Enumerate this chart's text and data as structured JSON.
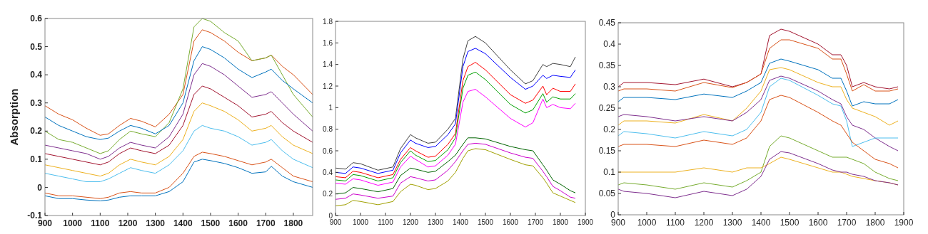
{
  "chart_data": [
    {
      "type": "line",
      "ylabel": "Absorption",
      "x": [
        900,
        950,
        1000,
        1050,
        1100,
        1130,
        1170,
        1210,
        1250,
        1300,
        1350,
        1400,
        1440,
        1470,
        1500,
        1550,
        1600,
        1650,
        1700,
        1720,
        1760,
        1800,
        1870
      ],
      "xlim": [
        900,
        1870
      ],
      "xticks": [
        900,
        1000,
        1100,
        1200,
        1300,
        1400,
        1500,
        1600,
        1700,
        1800
      ],
      "ylim": [
        -0.1,
        0.6
      ],
      "yticks": [
        -0.1,
        0,
        0.1,
        0.2,
        0.3,
        0.4,
        0.5,
        0.6
      ],
      "grid": false,
      "series": [
        {
          "color": "#d95319",
          "values": [
            0.29,
            0.26,
            0.24,
            0.21,
            0.185,
            0.19,
            0.22,
            0.245,
            0.235,
            0.215,
            0.26,
            0.33,
            0.52,
            0.56,
            0.55,
            0.52,
            0.48,
            0.45,
            0.46,
            0.47,
            0.43,
            0.4,
            0.33
          ]
        },
        {
          "color": "#77ac30",
          "values": [
            0.2,
            0.17,
            0.16,
            0.14,
            0.12,
            0.13,
            0.17,
            0.2,
            0.19,
            0.18,
            0.23,
            0.35,
            0.57,
            0.6,
            0.59,
            0.55,
            0.52,
            0.45,
            0.46,
            0.47,
            0.4,
            0.33,
            0.25
          ]
        },
        {
          "color": "#0072bd",
          "values": [
            0.25,
            0.22,
            0.2,
            0.18,
            0.17,
            0.175,
            0.2,
            0.22,
            0.21,
            0.19,
            0.22,
            0.3,
            0.45,
            0.5,
            0.49,
            0.46,
            0.42,
            0.39,
            0.41,
            0.42,
            0.38,
            0.35,
            0.3
          ]
        },
        {
          "color": "#7e2f8e",
          "values": [
            0.15,
            0.14,
            0.13,
            0.12,
            0.1,
            0.11,
            0.14,
            0.16,
            0.15,
            0.14,
            0.18,
            0.26,
            0.4,
            0.44,
            0.43,
            0.4,
            0.36,
            0.32,
            0.33,
            0.34,
            0.3,
            0.26,
            0.2
          ]
        },
        {
          "color": "#a2142f",
          "values": [
            0.12,
            0.11,
            0.1,
            0.09,
            0.08,
            0.09,
            0.12,
            0.14,
            0.13,
            0.12,
            0.15,
            0.22,
            0.33,
            0.36,
            0.35,
            0.32,
            0.29,
            0.25,
            0.26,
            0.27,
            0.23,
            0.2,
            0.16
          ]
        },
        {
          "color": "#edb120",
          "values": [
            0.08,
            0.07,
            0.06,
            0.05,
            0.04,
            0.05,
            0.08,
            0.1,
            0.09,
            0.08,
            0.11,
            0.17,
            0.27,
            0.3,
            0.29,
            0.27,
            0.24,
            0.2,
            0.21,
            0.22,
            0.18,
            0.15,
            0.12
          ]
        },
        {
          "color": "#4dbeee",
          "values": [
            0.05,
            0.04,
            0.03,
            0.02,
            0.02,
            0.03,
            0.05,
            0.07,
            0.06,
            0.05,
            0.08,
            0.13,
            0.2,
            0.22,
            0.21,
            0.2,
            0.18,
            0.15,
            0.16,
            0.17,
            0.13,
            0.1,
            0.07
          ]
        },
        {
          "color": "#d95319",
          "values": [
            -0.02,
            -0.03,
            -0.03,
            -0.035,
            -0.04,
            -0.035,
            -0.02,
            -0.015,
            -0.02,
            -0.02,
            0.0,
            0.05,
            0.11,
            0.125,
            0.12,
            0.11,
            0.095,
            0.08,
            0.09,
            0.1,
            0.07,
            0.04,
            0.02
          ]
        },
        {
          "color": "#0072bd",
          "values": [
            -0.03,
            -0.04,
            -0.04,
            -0.045,
            -0.048,
            -0.045,
            -0.035,
            -0.03,
            -0.03,
            -0.03,
            -0.015,
            0.02,
            0.09,
            0.1,
            0.095,
            0.085,
            0.07,
            0.05,
            0.055,
            0.075,
            0.04,
            0.02,
            0.0
          ]
        }
      ]
    },
    {
      "type": "line",
      "x": [
        900,
        940,
        970,
        1000,
        1070,
        1130,
        1160,
        1200,
        1220,
        1270,
        1300,
        1350,
        1380,
        1410,
        1430,
        1460,
        1500,
        1600,
        1660,
        1690,
        1730,
        1745,
        1770,
        1800,
        1840,
        1860
      ],
      "xlim": [
        900,
        1900
      ],
      "xticks": [
        900,
        1000,
        1100,
        1200,
        1300,
        1400,
        1500,
        1600,
        1700,
        1800,
        1900
      ],
      "ylim": [
        0,
        1.8
      ],
      "yticks": [
        0,
        0.2,
        0.4,
        0.6,
        0.8,
        1,
        1.2,
        1.4,
        1.6,
        1.8
      ],
      "grid": false,
      "series": [
        {
          "color": "#404040",
          "values": [
            0.44,
            0.43,
            0.49,
            0.48,
            0.42,
            0.45,
            0.62,
            0.75,
            0.72,
            0.67,
            0.68,
            0.8,
            0.9,
            1.45,
            1.62,
            1.66,
            1.6,
            1.35,
            1.22,
            1.25,
            1.4,
            1.38,
            1.41,
            1.4,
            1.38,
            1.47
          ]
        },
        {
          "color": "#0000ff",
          "values": [
            0.4,
            0.39,
            0.45,
            0.44,
            0.39,
            0.42,
            0.58,
            0.7,
            0.67,
            0.63,
            0.64,
            0.75,
            0.85,
            1.38,
            1.52,
            1.55,
            1.5,
            1.28,
            1.17,
            1.2,
            1.3,
            1.27,
            1.3,
            1.29,
            1.28,
            1.35
          ]
        },
        {
          "color": "#ff0000",
          "values": [
            0.36,
            0.35,
            0.41,
            0.4,
            0.35,
            0.38,
            0.52,
            0.63,
            0.6,
            0.54,
            0.55,
            0.66,
            0.76,
            1.25,
            1.38,
            1.42,
            1.35,
            1.12,
            1.04,
            1.07,
            1.2,
            1.12,
            1.18,
            1.15,
            1.15,
            1.22
          ]
        },
        {
          "color": "#00a000",
          "values": [
            0.33,
            0.32,
            0.38,
            0.37,
            0.32,
            0.35,
            0.49,
            0.6,
            0.56,
            0.5,
            0.51,
            0.61,
            0.72,
            1.18,
            1.3,
            1.33,
            1.26,
            1.03,
            0.95,
            0.98,
            1.13,
            1.05,
            1.1,
            1.08,
            1.08,
            1.13
          ]
        },
        {
          "color": "#ff00ff",
          "values": [
            0.3,
            0.29,
            0.34,
            0.33,
            0.28,
            0.31,
            0.45,
            0.55,
            0.52,
            0.45,
            0.46,
            0.56,
            0.66,
            1.05,
            1.15,
            1.17,
            1.1,
            0.9,
            0.82,
            0.86,
            1.08,
            1.0,
            1.03,
            1.0,
            0.99,
            1.04
          ]
        },
        {
          "color": "#006400",
          "values": [
            0.2,
            0.21,
            0.26,
            0.25,
            0.22,
            0.25,
            0.37,
            0.44,
            0.43,
            0.4,
            0.41,
            0.5,
            0.56,
            0.66,
            0.72,
            0.72,
            0.71,
            0.64,
            0.61,
            0.6,
            0.47,
            0.42,
            0.33,
            0.29,
            0.23,
            0.21
          ]
        },
        {
          "color": "#cc00cc",
          "values": [
            0.15,
            0.16,
            0.2,
            0.19,
            0.16,
            0.18,
            0.3,
            0.36,
            0.35,
            0.32,
            0.33,
            0.42,
            0.5,
            0.6,
            0.66,
            0.67,
            0.66,
            0.58,
            0.54,
            0.53,
            0.41,
            0.36,
            0.27,
            0.23,
            0.17,
            0.16
          ]
        },
        {
          "color": "#a0a000",
          "values": [
            0.09,
            0.1,
            0.14,
            0.13,
            0.1,
            0.13,
            0.22,
            0.29,
            0.28,
            0.24,
            0.25,
            0.32,
            0.4,
            0.53,
            0.6,
            0.62,
            0.61,
            0.52,
            0.47,
            0.46,
            0.35,
            0.3,
            0.21,
            0.18,
            0.14,
            0.12
          ]
        }
      ]
    },
    {
      "type": "line",
      "x": [
        900,
        920,
        1000,
        1100,
        1200,
        1300,
        1350,
        1400,
        1430,
        1470,
        1500,
        1600,
        1650,
        1680,
        1700,
        1720,
        1760,
        1800,
        1850,
        1880
      ],
      "xlim": [
        900,
        1900
      ],
      "xticks": [
        900,
        1000,
        1100,
        1200,
        1300,
        1400,
        1500,
        1600,
        1700,
        1800,
        1900
      ],
      "ylim": [
        0,
        0.45
      ],
      "yticks": [
        0,
        0.05,
        0.1,
        0.15,
        0.2,
        0.25,
        0.3,
        0.35,
        0.4,
        0.45
      ],
      "grid": false,
      "series": [
        {
          "color": "#a2142f",
          "values": [
            0.3,
            0.31,
            0.31,
            0.305,
            0.318,
            0.3,
            0.31,
            0.33,
            0.42,
            0.435,
            0.43,
            0.4,
            0.375,
            0.375,
            0.35,
            0.3,
            0.31,
            0.3,
            0.295,
            0.3
          ]
        },
        {
          "color": "#d95319",
          "values": [
            0.29,
            0.295,
            0.295,
            0.29,
            0.31,
            0.298,
            0.31,
            0.33,
            0.39,
            0.41,
            0.41,
            0.39,
            0.365,
            0.365,
            0.33,
            0.29,
            0.305,
            0.29,
            0.29,
            0.295
          ]
        },
        {
          "color": "#0072bd",
          "values": [
            0.265,
            0.275,
            0.275,
            0.27,
            0.283,
            0.275,
            0.29,
            0.31,
            0.355,
            0.365,
            0.36,
            0.34,
            0.32,
            0.32,
            0.29,
            0.255,
            0.265,
            0.26,
            0.26,
            0.27
          ]
        },
        {
          "color": "#edb120",
          "values": [
            0.21,
            0.22,
            0.22,
            0.215,
            0.235,
            0.22,
            0.25,
            0.29,
            0.34,
            0.345,
            0.34,
            0.31,
            0.3,
            0.3,
            0.27,
            0.25,
            0.24,
            0.23,
            0.21,
            0.22
          ]
        },
        {
          "color": "#7e2f8e",
          "values": [
            0.23,
            0.235,
            0.23,
            0.22,
            0.23,
            0.22,
            0.24,
            0.27,
            0.315,
            0.325,
            0.32,
            0.29,
            0.27,
            0.26,
            0.23,
            0.21,
            0.2,
            0.18,
            0.16,
            0.15
          ]
        },
        {
          "color": "#4dbeee",
          "values": [
            0.185,
            0.195,
            0.19,
            0.18,
            0.195,
            0.185,
            0.2,
            0.24,
            0.3,
            0.32,
            0.315,
            0.28,
            0.26,
            0.255,
            0.22,
            0.16,
            0.17,
            0.18,
            0.18,
            0.18
          ]
        },
        {
          "color": "#d95319",
          "values": [
            0.16,
            0.165,
            0.165,
            0.16,
            0.175,
            0.165,
            0.18,
            0.22,
            0.27,
            0.28,
            0.275,
            0.24,
            0.22,
            0.21,
            0.19,
            0.17,
            0.15,
            0.13,
            0.12,
            0.11
          ]
        },
        {
          "color": "#77ac30",
          "values": [
            0.07,
            0.075,
            0.07,
            0.06,
            0.075,
            0.065,
            0.08,
            0.1,
            0.16,
            0.185,
            0.18,
            0.15,
            0.135,
            0.135,
            0.135,
            0.13,
            0.12,
            0.1,
            0.085,
            0.08
          ]
        },
        {
          "color": "#edb120",
          "values": [
            0.1,
            0.1,
            0.1,
            0.1,
            0.11,
            0.1,
            0.11,
            0.11,
            0.12,
            0.135,
            0.13,
            0.11,
            0.1,
            0.1,
            0.095,
            0.09,
            0.085,
            0.08,
            0.075,
            0.07
          ]
        },
        {
          "color": "#7e2f8e",
          "values": [
            0.06,
            0.055,
            0.05,
            0.04,
            0.055,
            0.045,
            0.06,
            0.09,
            0.13,
            0.148,
            0.145,
            0.12,
            0.105,
            0.1,
            0.1,
            0.095,
            0.09,
            0.08,
            0.075,
            0.07
          ]
        }
      ]
    }
  ]
}
